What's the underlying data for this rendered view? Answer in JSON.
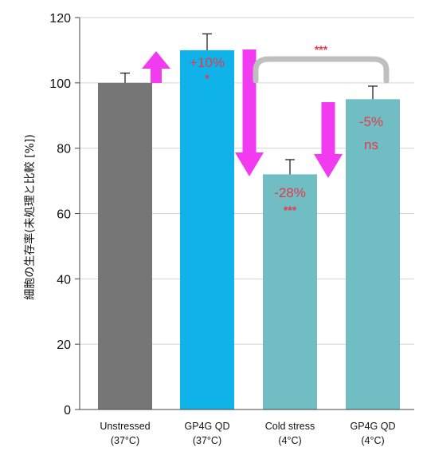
{
  "chart_data": {
    "type": "bar",
    "ylabel": "細胞の生存率(未処理と比較 [%])",
    "ylim": [
      0,
      120
    ],
    "yticks": [
      "0",
      "20",
      "40",
      "60",
      "80",
      "100",
      "120"
    ],
    "categories": [
      {
        "line1": "Unstressed",
        "line2": "(37°C)"
      },
      {
        "line1": "GP4G QD",
        "line2": "(37°C)"
      },
      {
        "line1": "Cold stress",
        "line2": "(4°C)"
      },
      {
        "line1": "GP4G QD",
        "line2": "(4°C)"
      }
    ],
    "values": [
      100,
      110,
      72,
      95
    ],
    "errors": [
      3,
      5,
      4.5,
      4
    ],
    "bar_colors": [
      "#767676",
      "#10b2ea",
      "#70bdc3",
      "#70bdc3"
    ],
    "annotations": [
      {
        "bar": 1,
        "pct": "+10%",
        "sig": "*"
      },
      {
        "bar": 2,
        "pct": "-28%",
        "sig": "***"
      },
      {
        "bar": 3,
        "pct": "-5%",
        "sig": "ns"
      }
    ],
    "bracket_sig": "***",
    "colors": {
      "annotation": "#e8394a",
      "arrow": "#f23bf0",
      "bracket": "#bfbfbf"
    },
    "grid": true
  }
}
